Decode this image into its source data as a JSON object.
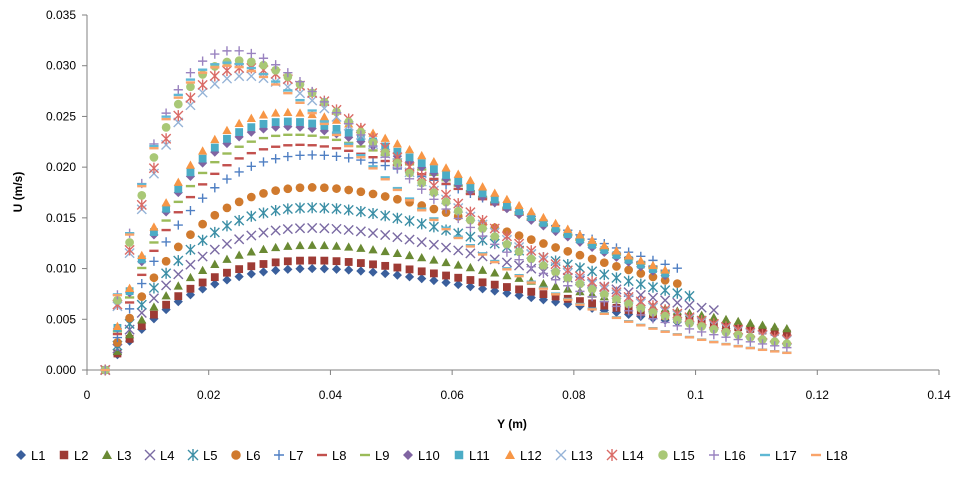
{
  "chart_data": {
    "type": "scatter",
    "title": "",
    "xlabel": "Y (m)",
    "ylabel": "U (m/s)",
    "xlim": [
      0,
      0.14
    ],
    "ylim": [
      0,
      0.035
    ],
    "x_ticks": [
      "0",
      "0.02",
      "0.04",
      "0.06",
      "0.08",
      "0.1",
      "0.12",
      "0.14"
    ],
    "y_ticks": [
      "0.000",
      "0.005",
      "0.010",
      "0.015",
      "0.020",
      "0.025",
      "0.030",
      "0.035"
    ],
    "grid": false,
    "legend_position": "bottom",
    "series": [
      {
        "name": "L1",
        "marker": "diamond",
        "color": "#3a5f9c",
        "start": 0.003,
        "end": 0.105,
        "peak_x": 0.037,
        "peak_y": 0.01
      },
      {
        "name": "L2",
        "marker": "square",
        "color": "#9e3b35",
        "start": 0.003,
        "end": 0.115,
        "peak_x": 0.037,
        "peak_y": 0.0108
      },
      {
        "name": "L3",
        "marker": "triangle",
        "color": "#6a8a34",
        "start": 0.003,
        "end": 0.115,
        "peak_x": 0.037,
        "peak_y": 0.0123
      },
      {
        "name": "L4",
        "marker": "x",
        "color": "#7a6aa3",
        "start": 0.003,
        "end": 0.103,
        "peak_x": 0.037,
        "peak_y": 0.014
      },
      {
        "name": "L5",
        "marker": "star",
        "color": "#3c8fa6",
        "start": 0.003,
        "end": 0.1,
        "peak_x": 0.037,
        "peak_y": 0.016
      },
      {
        "name": "L6",
        "marker": "circle",
        "color": "#d07a2e",
        "start": 0.003,
        "end": 0.098,
        "peak_x": 0.037,
        "peak_y": 0.018
      },
      {
        "name": "L7",
        "marker": "plus",
        "color": "#4f7fc3",
        "start": 0.003,
        "end": 0.097,
        "peak_x": 0.037,
        "peak_y": 0.0212
      },
      {
        "name": "L8",
        "marker": "dash",
        "color": "#c2504d",
        "start": 0.003,
        "end": 0.096,
        "peak_x": 0.035,
        "peak_y": 0.0222
      },
      {
        "name": "L9",
        "marker": "dash",
        "color": "#9bbb59",
        "start": 0.003,
        "end": 0.096,
        "peak_x": 0.034,
        "peak_y": 0.0232
      },
      {
        "name": "L10",
        "marker": "diamond",
        "color": "#8064a2",
        "start": 0.003,
        "end": 0.096,
        "peak_x": 0.033,
        "peak_y": 0.024
      },
      {
        "name": "L11",
        "marker": "square",
        "color": "#4bacc6",
        "start": 0.003,
        "end": 0.096,
        "peak_x": 0.033,
        "peak_y": 0.0245
      },
      {
        "name": "L12",
        "marker": "triangle",
        "color": "#f79646",
        "start": 0.003,
        "end": 0.096,
        "peak_x": 0.033,
        "peak_y": 0.0254
      },
      {
        "name": "L13",
        "marker": "x",
        "color": "#95b3d7",
        "start": 0.003,
        "end": 0.115,
        "peak_x": 0.026,
        "peak_y": 0.029
      },
      {
        "name": "L14",
        "marker": "star",
        "color": "#da6b66",
        "start": 0.003,
        "end": 0.115,
        "peak_x": 0.026,
        "peak_y": 0.0298
      },
      {
        "name": "L15",
        "marker": "circle",
        "color": "#a9c876",
        "start": 0.003,
        "end": 0.115,
        "peak_x": 0.025,
        "peak_y": 0.0305
      },
      {
        "name": "L16",
        "marker": "plus",
        "color": "#9a83c0",
        "start": 0.003,
        "end": 0.115,
        "peak_x": 0.024,
        "peak_y": 0.0315
      },
      {
        "name": "L17",
        "marker": "dash",
        "color": "#5fb8d4",
        "start": 0.003,
        "end": 0.115,
        "peak_x": 0.023,
        "peak_y": 0.0303
      },
      {
        "name": "L18",
        "marker": "dash",
        "color": "#f9a46a",
        "start": 0.003,
        "end": 0.115,
        "peak_x": 0.023,
        "peak_y": 0.03
      }
    ]
  }
}
